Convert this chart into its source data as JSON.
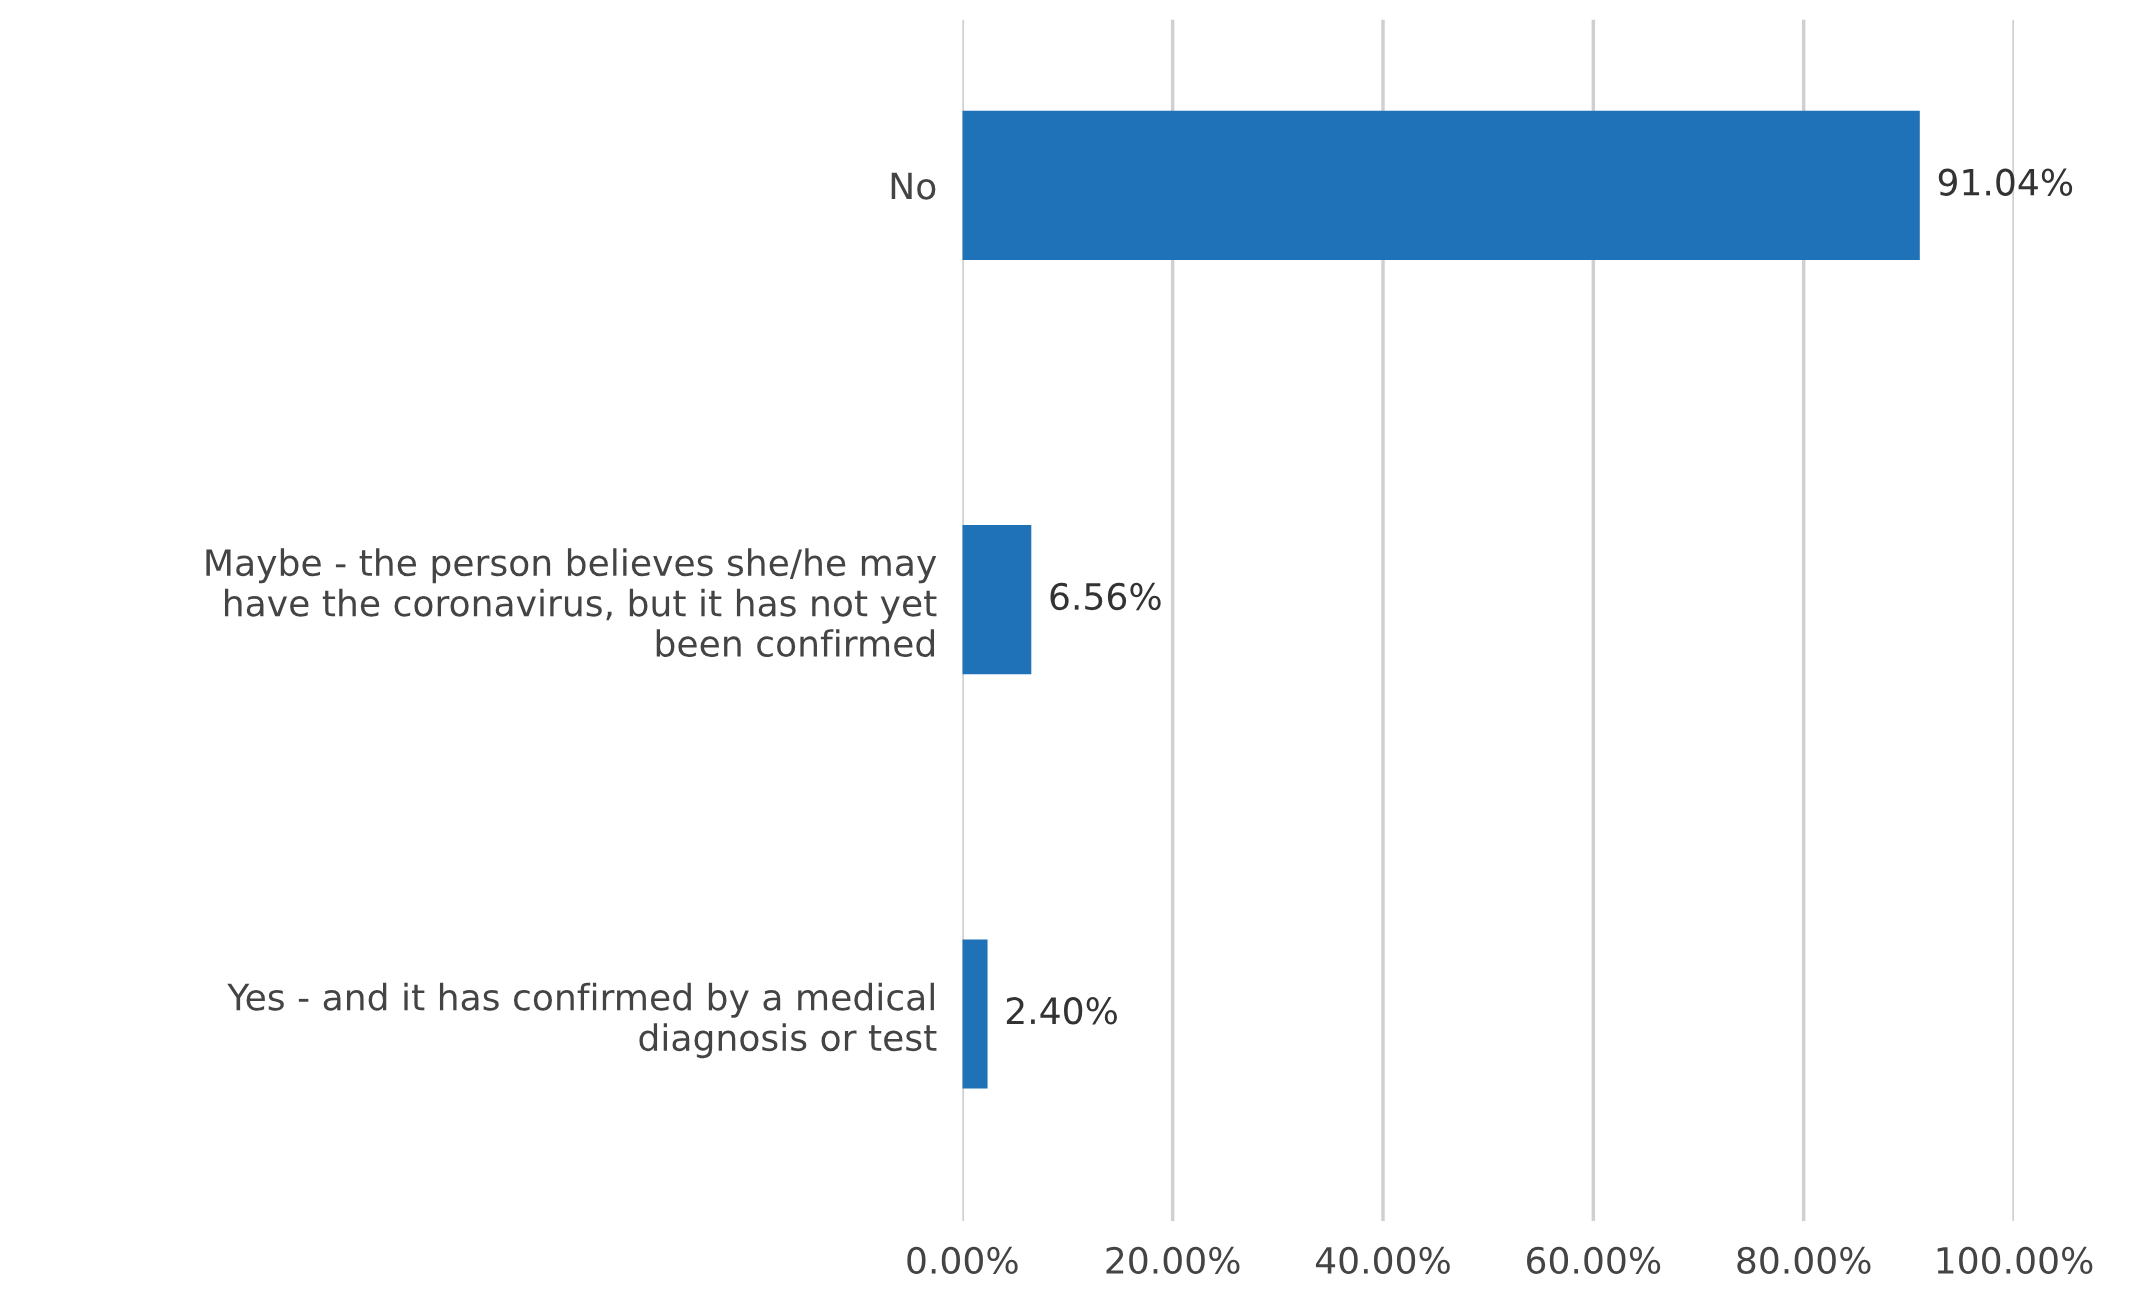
{
  "chart_data": {
    "type": "bar",
    "orientation": "horizontal",
    "categories": [
      "No",
      "Maybe - the person believes she/he may\nhave the coronavirus, but it has not yet\nbeen confirmed",
      "Yes - and it has confirmed by a medical\ndiagnosis or test"
    ],
    "values": [
      91.04,
      6.56,
      2.4
    ],
    "value_labels": [
      "91.04%",
      "6.56%",
      "2.40%"
    ],
    "color": "#1f72b8",
    "xlim": [
      0,
      100
    ],
    "xticks": [
      {
        "value": 0,
        "label": "0.00%"
      },
      {
        "value": 20,
        "label": "20.00%"
      },
      {
        "value": 40,
        "label": "40.00%"
      },
      {
        "value": 60,
        "label": "60.00%"
      },
      {
        "value": 80,
        "label": "80.00%"
      },
      {
        "value": 100,
        "label": "100.00%"
      }
    ],
    "grid": "x"
  }
}
